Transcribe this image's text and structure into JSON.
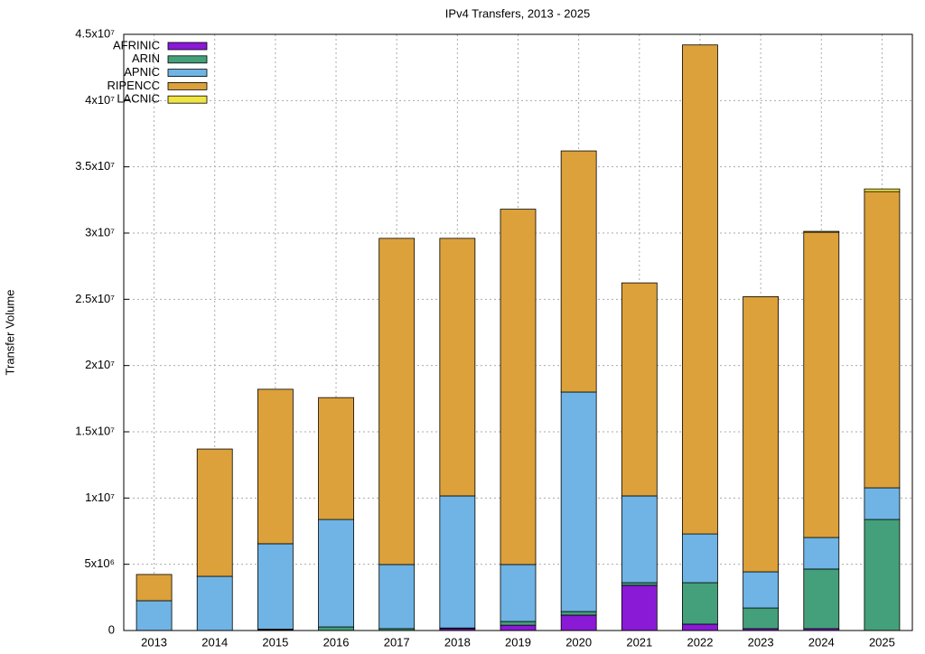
{
  "chart_data": {
    "type": "stacked_bar",
    "title": "IPv4 Transfers, 2013 - 2025",
    "y_label": "Transfer Volume",
    "categories": [
      "2013",
      "2014",
      "2015",
      "2016",
      "2017",
      "2018",
      "2019",
      "2020",
      "2021",
      "2022",
      "2023",
      "2024",
      "2025"
    ],
    "series": [
      {
        "name": "AFRINIC",
        "color": "#8a1ad6",
        "values": [
          0,
          0,
          50000,
          0,
          0,
          140000,
          400000,
          1160000,
          3410000,
          480000,
          140000,
          140000,
          0
        ]
      },
      {
        "name": "ARIN",
        "color": "#44a07a",
        "values": [
          0,
          0,
          50000,
          270000,
          140000,
          50000,
          280000,
          270000,
          200000,
          3130000,
          1560000,
          4500000,
          8380000
        ]
      },
      {
        "name": "APNIC",
        "color": "#6fb4e4",
        "values": [
          2250000,
          4090000,
          6450000,
          8110000,
          4840000,
          9970000,
          4300000,
          16570000,
          6550000,
          3680000,
          2730000,
          2380000,
          2390000
        ]
      },
      {
        "name": "RIPENCC",
        "color": "#dca13a",
        "values": [
          1980000,
          9610000,
          11660000,
          9200000,
          24620000,
          19440000,
          26820000,
          18200000,
          16080000,
          36910000,
          20770000,
          23040000,
          22360000
        ]
      },
      {
        "name": "LACNIC",
        "color": "#f0e442",
        "values": [
          0,
          0,
          0,
          0,
          0,
          0,
          0,
          0,
          0,
          0,
          0,
          70000,
          200000
        ]
      }
    ],
    "ylim": [
      0,
      45000000
    ],
    "yticks": [
      0,
      {
        "value": 5000000,
        "label": "5x10⁶"
      },
      {
        "value": 10000000,
        "label": "1x10⁷"
      },
      {
        "value": 15000000,
        "label": "1.5x10⁷"
      },
      {
        "value": 20000000,
        "label": "2x10⁷"
      },
      {
        "value": 25000000,
        "label": "2.5x10⁷"
      },
      {
        "value": 30000000,
        "label": "3x10⁷"
      },
      {
        "value": 35000000,
        "label": "3.5x10⁷"
      },
      {
        "value": 40000000,
        "label": "4x10⁷"
      },
      {
        "value": 45000000,
        "label": "4.5x10⁷"
      }
    ],
    "grid": true,
    "legend": "top-left"
  }
}
